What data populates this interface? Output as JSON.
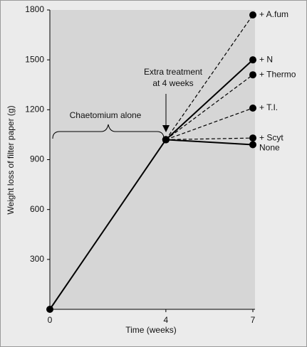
{
  "chart_data": {
    "type": "line",
    "x_label": "Time (weeks)",
    "y_label": "Weight loss of filter paper (g)",
    "x": [
      0,
      4,
      7
    ],
    "xlim": [
      0,
      7
    ],
    "xticks": [
      0,
      4,
      7
    ],
    "ylim": [
      0,
      1800
    ],
    "yticks": [
      300,
      600,
      900,
      1200,
      1500,
      1800
    ],
    "annotation": [
      "Extra treatment",
      "at 4 weeks"
    ],
    "series": [
      {
        "name": "Chaetomium alone",
        "color": "#000000",
        "style": "solid",
        "values": [
          0,
          1020,
          null
        ]
      },
      {
        "name": "+ A.fum",
        "color": "#000000",
        "style": "dashed",
        "values": [
          null,
          1020,
          1770
        ]
      },
      {
        "name": "+ N",
        "color": "#000000",
        "style": "solid",
        "values": [
          null,
          1020,
          1500
        ]
      },
      {
        "name": "+ Thermo",
        "color": "#000000",
        "style": "dashed",
        "values": [
          null,
          1020,
          1410
        ]
      },
      {
        "name": "+ T.I.",
        "color": "#000000",
        "style": "dashed",
        "values": [
          null,
          1020,
          1210
        ]
      },
      {
        "name": "+ Scyt",
        "color": "#000000",
        "style": "dashed",
        "values": [
          null,
          1020,
          1030
        ]
      },
      {
        "name": "None",
        "color": "#000000",
        "style": "solid",
        "values": [
          null,
          1020,
          990
        ]
      }
    ]
  }
}
